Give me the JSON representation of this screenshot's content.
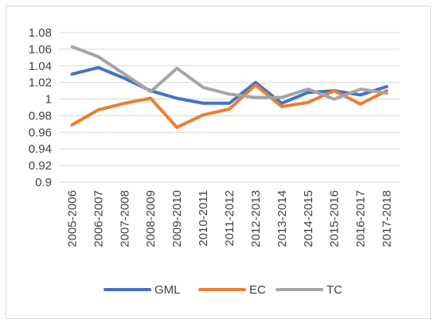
{
  "chart_data": {
    "type": "line",
    "title": "",
    "xlabel": "",
    "ylabel": "",
    "categories": [
      "2005-2006",
      "2006-2007",
      "2007-2008",
      "2008-2009",
      "2009-2010",
      "2010-2011",
      "2011-2012",
      "2012-2013",
      "2013-2014",
      "2014-2015",
      "2015-2016",
      "2016-2017",
      "2017-2018"
    ],
    "ylim": [
      0.9,
      1.08
    ],
    "yticks": [
      "0.9",
      "0.92",
      "0.94",
      "0.96",
      "0.98",
      "1",
      "1.02",
      "1.04",
      "1.06",
      "1.08"
    ],
    "grid": true,
    "legend_position": "bottom",
    "series": [
      {
        "name": "GML",
        "color": "#4472c4",
        "values": [
          1.03,
          1.038,
          1.025,
          1.01,
          1.001,
          0.995,
          0.995,
          1.02,
          0.995,
          1.008,
          1.01,
          1.005,
          1.015
        ]
      },
      {
        "name": "EC",
        "color": "#ed7d31",
        "values": [
          0.969,
          0.987,
          0.995,
          1.001,
          0.966,
          0.981,
          0.988,
          1.017,
          0.991,
          0.996,
          1.01,
          0.994,
          1.01
        ]
      },
      {
        "name": "TC",
        "color": "#a5a5a5",
        "values": [
          1.063,
          1.051,
          1.03,
          1.009,
          1.037,
          1.014,
          1.006,
          1.002,
          1.002,
          1.012,
          1.0,
          1.012,
          1.007
        ]
      }
    ]
  }
}
